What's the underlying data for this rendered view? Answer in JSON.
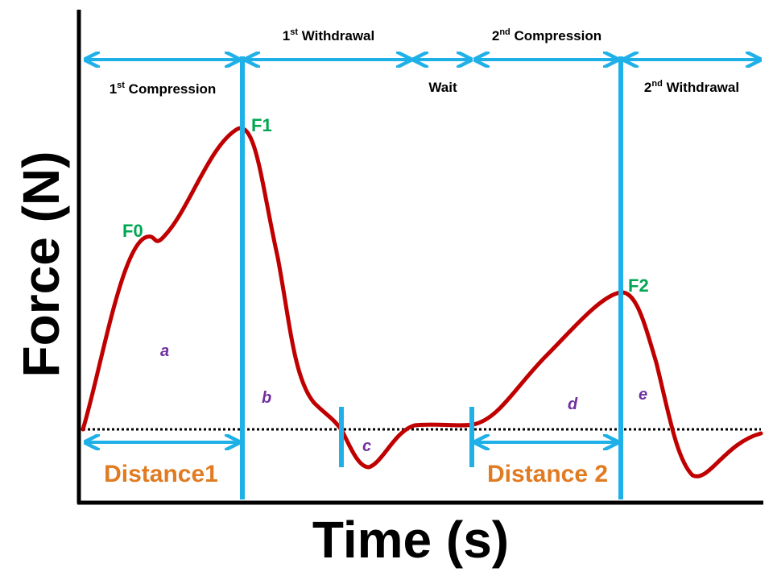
{
  "axes": {
    "y_title": "Force (N)",
    "x_title": "Time (s)"
  },
  "phases": [
    {
      "ordinal": "1",
      "suffix": "st",
      "label": "Compression"
    },
    {
      "ordinal": "1",
      "suffix": "st",
      "label": "Withdrawal"
    },
    {
      "ordinal": "",
      "suffix": "",
      "label": "Wait"
    },
    {
      "ordinal": "2",
      "suffix": "nd",
      "label": "Compression"
    },
    {
      "ordinal": "2",
      "suffix": "nd",
      "label": "Withdrawal"
    }
  ],
  "points": {
    "f0": "F0",
    "f1": "F1",
    "f2": "F2"
  },
  "regions": {
    "a": "a",
    "b": "b",
    "c": "c",
    "d": "d",
    "e": "e"
  },
  "distances": {
    "d1": "Distance1",
    "d2": "Distance 2"
  },
  "colors": {
    "curve": "#c00000",
    "marker": "#1fb0e8",
    "point_label": "#00a651",
    "region_label": "#7030a0",
    "distance_label": "#e07b22",
    "axis": "#000000"
  }
}
